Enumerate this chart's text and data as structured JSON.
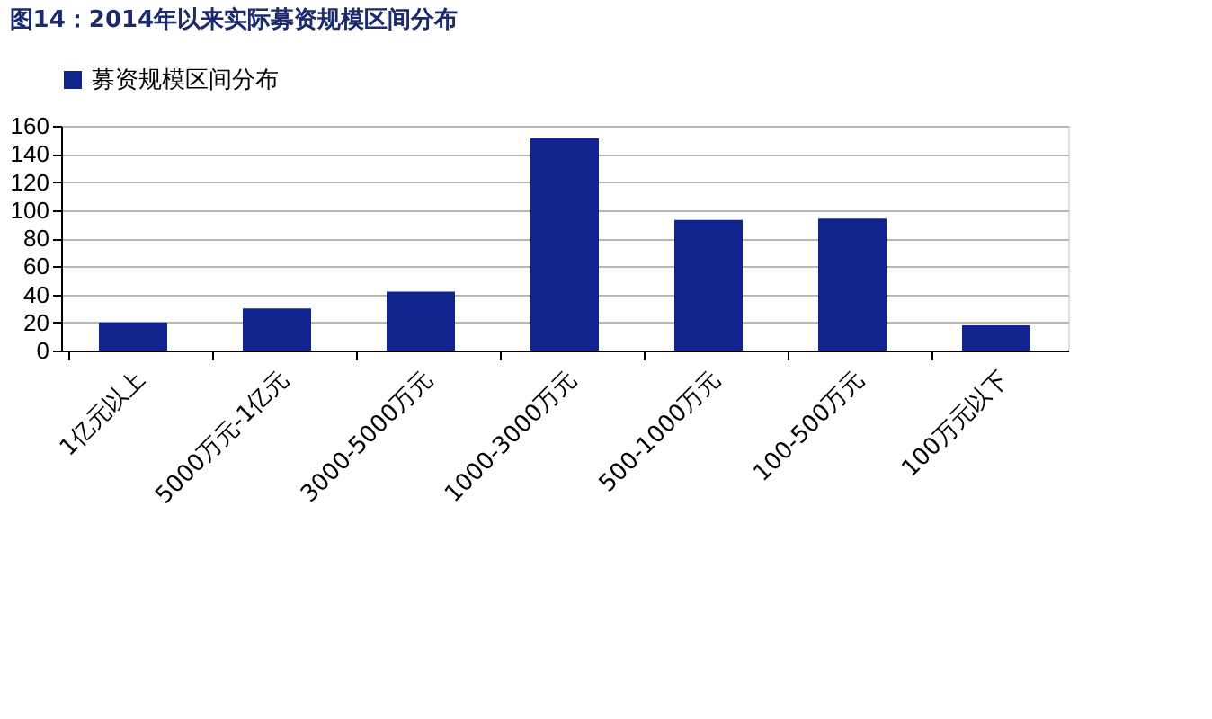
{
  "chart_data": {
    "type": "bar",
    "title": "图14：2014年以来实际募资规模区间分布",
    "categories": [
      "1亿元以上",
      "5000万元-1亿元",
      "3000-5000万元",
      "1000-3000万元",
      "500-1000万元",
      "100-500万元",
      "100万元以下"
    ],
    "series": [
      {
        "name": "募资规模区间分布",
        "color": "#10248f",
        "values": [
          20,
          30,
          42,
          151,
          93,
          94,
          18
        ]
      }
    ],
    "ylim": [
      0,
      160
    ],
    "yticks": [
      0,
      20,
      40,
      60,
      80,
      100,
      120,
      140,
      160
    ],
    "grid": "y",
    "legend": "top"
  }
}
